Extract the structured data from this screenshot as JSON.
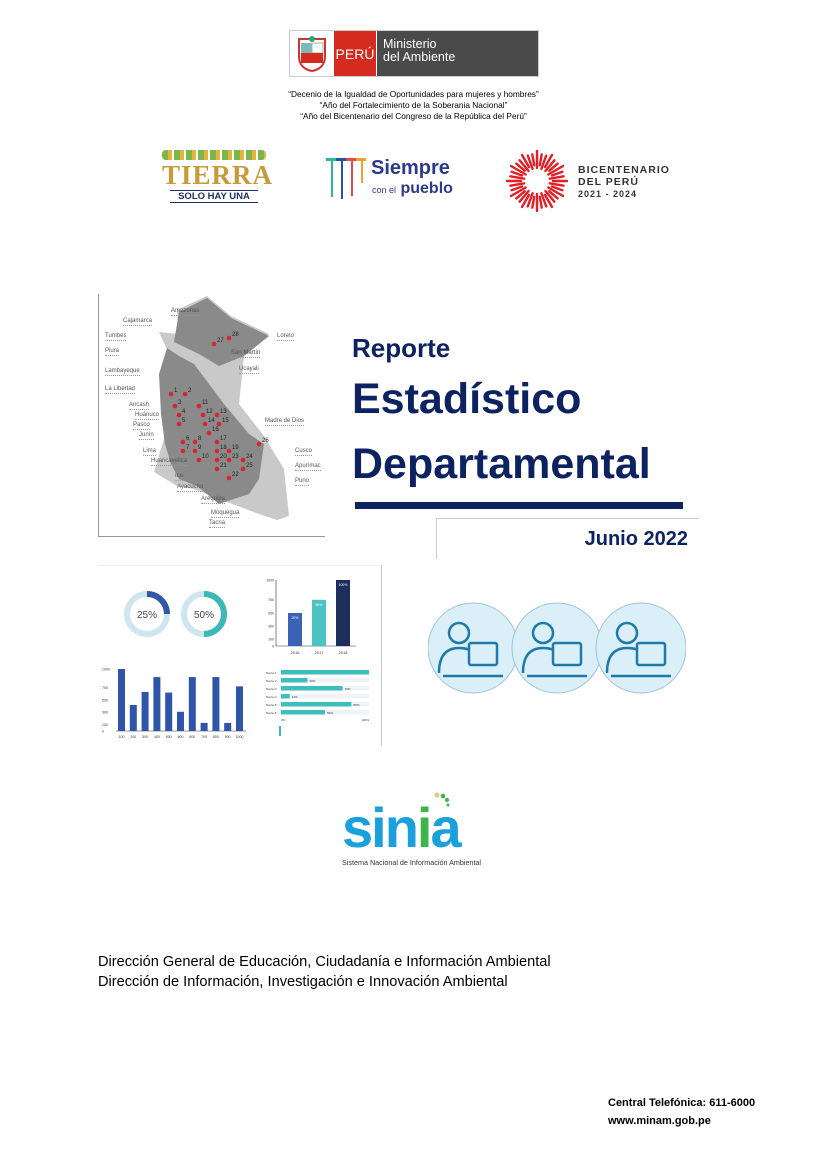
{
  "header": {
    "ministry_country": "PERÚ",
    "ministry_name_line1": "Ministerio",
    "ministry_name_line2": "del Ambiente",
    "mottos": [
      "“Decenio de la Igualdad de Oportunidades para mujeres y hombres”",
      "“Año del Fortalecimiento de la Soberania Nacional”",
      "“Año del Bicentenario del Congreso de la República del Perú”"
    ]
  },
  "logos": {
    "tierra": {
      "title": "TIERRA",
      "subtitle": "SOLO HAY UNA"
    },
    "siempre": {
      "line1": "Siempre",
      "line2a": "con el",
      "line2b": "pueblo"
    },
    "bicentenario": {
      "line1": "BICENTENARIO",
      "line2": "DEL PERÚ",
      "line3": "2021 - 2024"
    }
  },
  "map": {
    "labels_left": [
      "Cajamarca",
      "Tumbes",
      "Piura",
      "Lambayeque",
      "La Libertad",
      "Ancash",
      "Huánuco",
      "Pasco",
      "Junín",
      "Lima",
      "Huancavelica",
      "Ica",
      "Ayacucho",
      "Arequipa",
      "Moquegua",
      "Tacna"
    ],
    "labels_right": [
      "Amazonas",
      "Loreto",
      "San Martín",
      "Ucayali",
      "Madre de Dios",
      "Cusco",
      "Apurímac",
      "Puno"
    ],
    "markers": [
      "1",
      "2",
      "3",
      "4",
      "5",
      "6",
      "7",
      "8",
      "9",
      "10",
      "11",
      "12",
      "13",
      "14",
      "15",
      "16",
      "17",
      "18",
      "19",
      "20",
      "21",
      "22",
      "23",
      "24",
      "25",
      "26",
      "27",
      "28"
    ]
  },
  "cover": {
    "title_line1": "Reporte",
    "title_line2": "Estadístico",
    "title_line3": "Departamental",
    "date": "Junio 2022",
    "title_color": "#0d2260"
  },
  "infographic": {
    "donuts": [
      "25%",
      "50%"
    ],
    "donut_colors": [
      "#2e59a6",
      "#3db8b8"
    ],
    "bar_small": {
      "categories": [
        "2016",
        "2017",
        "2018"
      ],
      "values": [
        500,
        700,
        1000
      ],
      "labels": [
        "20%",
        "50%",
        "100%"
      ],
      "ticks": [
        "0",
        "100",
        "300",
        "500",
        "700",
        "1000"
      ]
    },
    "bar_large": {
      "categories": [
        "100",
        "200",
        "300",
        "400",
        "500",
        "600",
        "600",
        "700",
        "800",
        "900",
        "1000"
      ],
      "values": [
        1000,
        420,
        630,
        870,
        620,
        310,
        870,
        130,
        870,
        130,
        720
      ],
      "ticks": [
        "0",
        "100",
        "300",
        "500",
        "700",
        "1000"
      ]
    },
    "hbar": {
      "categories": [
        "Name 1",
        "Name 2",
        "Name 3",
        "Name 4",
        "Name 5",
        "Name 6"
      ],
      "values": [
        100,
        30,
        70,
        10,
        80,
        50
      ],
      "labels": [
        "",
        "30%",
        "70%",
        "10%",
        "80%",
        "50%"
      ],
      "axis": [
        "0%",
        "100%"
      ]
    }
  },
  "sinia": {
    "logo": "sinia",
    "tagline": "Sistema Nacional de Información Ambiental"
  },
  "directorates": [
    "Dirección General de Educación, Ciudadanía e Información Ambiental",
    "Dirección de Información, Investigación e Innovación Ambiental"
  ],
  "footer": {
    "phone": "Central Telefónica: 611-6000",
    "website": "www.minam.gob.pe"
  }
}
